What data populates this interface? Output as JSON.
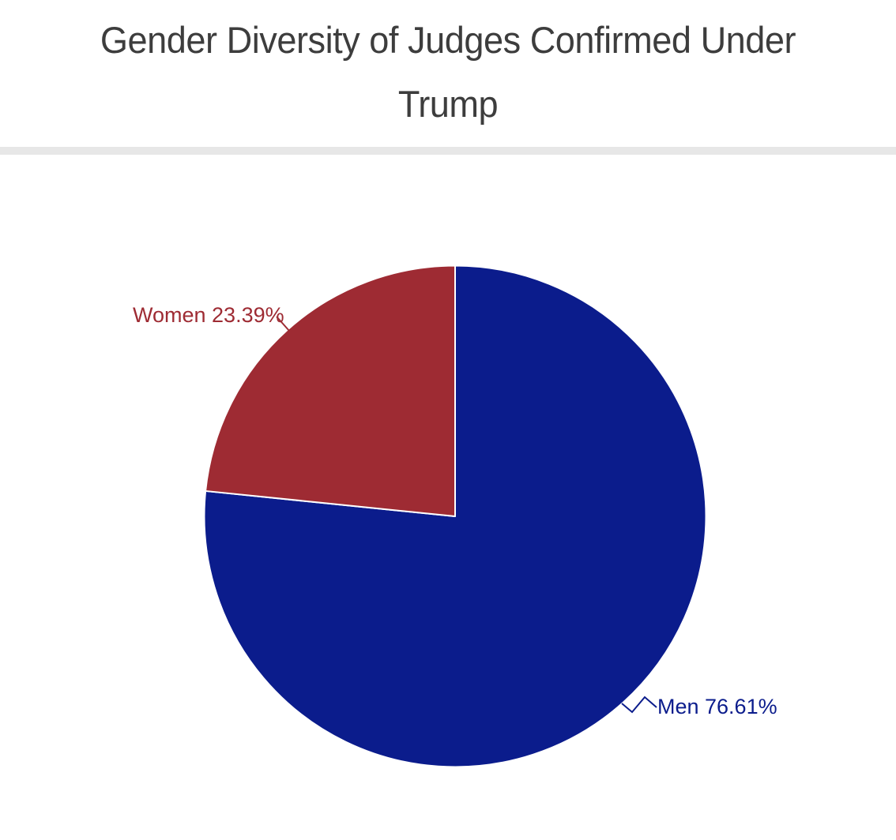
{
  "header": {
    "title_lines": [
      "Gender Diversity of Judges Confirmed Under",
      "Trump"
    ],
    "title_color": "#3d3d3d",
    "divider_color": "#e7e7e7"
  },
  "chart_data": {
    "type": "pie",
    "title": "Gender Diversity of Judges Confirmed Under Trump",
    "slices": [
      {
        "name": "Men",
        "value": 76.61,
        "label": "Men 76.61%",
        "color": "#0b1c8c"
      },
      {
        "name": "Women",
        "value": 23.39,
        "label": "Women 23.39%",
        "color": "#9e2b33"
      }
    ],
    "slice_order": "clockwise-from-12-oclock",
    "labels_position": "outside-with-leader-lines",
    "slice_border_color": "#ffffff",
    "legend": "none",
    "background": "#ffffff"
  }
}
